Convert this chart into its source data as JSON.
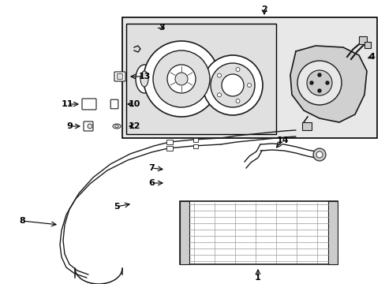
{
  "bg_color": "#ffffff",
  "fig_width": 4.89,
  "fig_height": 3.6,
  "dpi": 100,
  "line_color": "#1a1a1a",
  "box_fill": "#e8e8e8",
  "inner_fill": "#e0e0e0",
  "white": "#ffffff",
  "gray_light": "#cccccc",
  "gray_mid": "#aaaaaa"
}
